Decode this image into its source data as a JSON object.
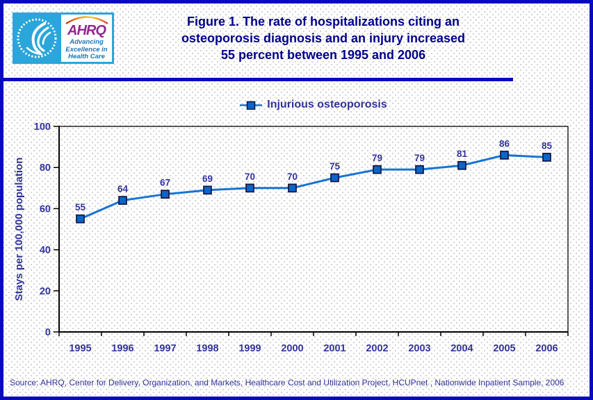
{
  "header": {
    "title_lines": [
      "Figure 1. The rate of hospitalizations citing an",
      "osteoporosis diagnosis and an injury increased",
      "55 percent between 1995 and 2006"
    ],
    "logo": {
      "ahrq": "AHRQ",
      "tagline_lines": [
        "Advancing",
        "Excellence in",
        "Health Care"
      ]
    }
  },
  "chart_data": {
    "type": "line",
    "title": "Figure 1. The rate of hospitalizations citing an osteoporosis diagnosis and an injury increased 55 percent between 1995 and 2006",
    "categories": [
      "1995",
      "1996",
      "1997",
      "1998",
      "1999",
      "2000",
      "2001",
      "2002",
      "2003",
      "2004",
      "2005",
      "2006"
    ],
    "series": [
      {
        "name": "Injurious osteoporosis",
        "values": [
          55,
          64,
          67,
          69,
          70,
          70,
          75,
          79,
          79,
          81,
          86,
          85
        ]
      }
    ],
    "xlabel": "",
    "ylabel": "Stays per 100,000 population",
    "ylim": [
      0,
      100
    ],
    "yticks": [
      0,
      20,
      40,
      60,
      80,
      100
    ],
    "grid": false,
    "legend_position": "top-center",
    "marker_shape": "square",
    "data_labels_shown": true
  },
  "colors": {
    "page_border": "#0909BE",
    "title_text": "#00008B",
    "chart_text": "#333399",
    "axis": "#000000",
    "line": "#1874D2",
    "marker_fill": "#0A65C9",
    "marker_stroke": "#14143C",
    "logo_cyan": "#2AA6DA",
    "ahrq_purple": "#92278F",
    "tagline_blue": "#1B75BC"
  },
  "source": {
    "text": "Source: AHRQ, Center for Delivery, Organization, and Markets, Healthcare Cost and Utilization Project, HCUPnet , Nationwide Inpatient Sample, 2006"
  }
}
